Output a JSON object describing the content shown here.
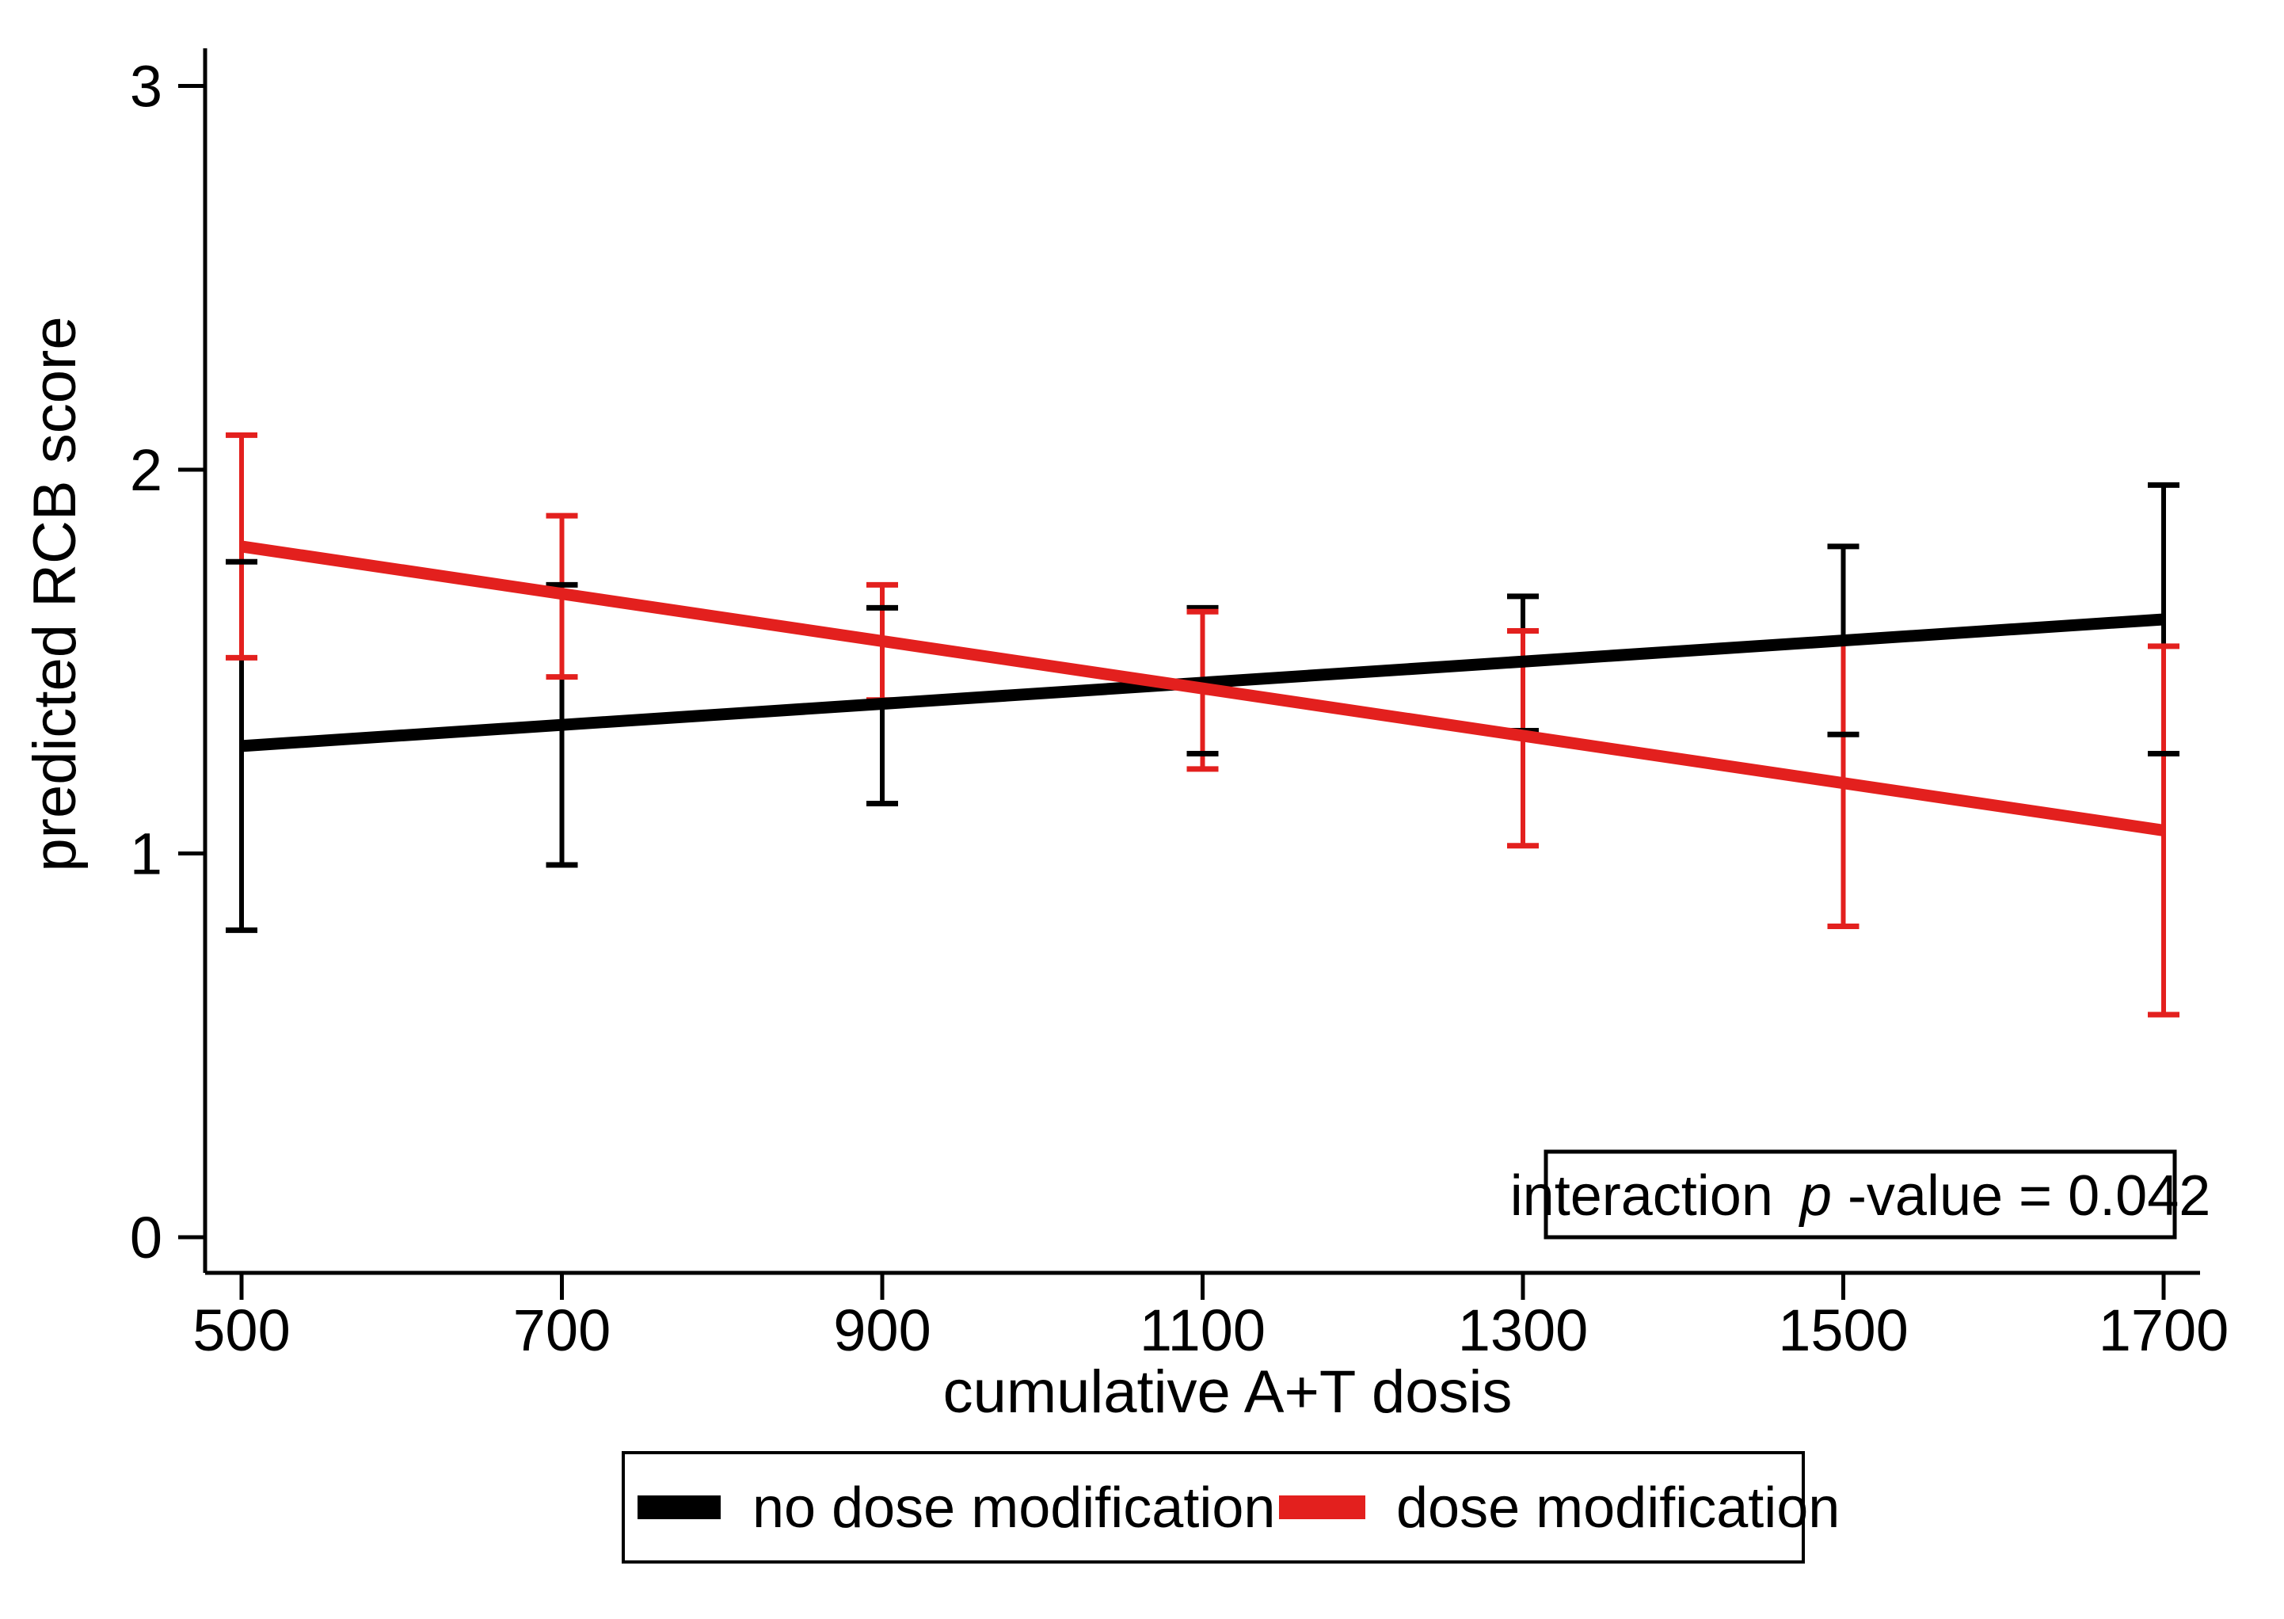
{
  "figure": {
    "background": "#ffffff",
    "black": "#000000",
    "red": "#e3201e"
  },
  "chart_data": {
    "type": "line",
    "title": "",
    "xlabel": "cumulative A+T dosis",
    "ylabel": "predicted RCB score",
    "x_ticks": [
      500,
      700,
      900,
      1100,
      1300,
      1500,
      1700
    ],
    "y_ticks": [
      0,
      1,
      2,
      3
    ],
    "xlim": [
      477,
      1723
    ],
    "ylim": [
      -0.09,
      3.1
    ],
    "grid": false,
    "legend_position": "bottom-center",
    "series": [
      {
        "name": "no dose modification",
        "color": "#000000",
        "line": {
          "x": [
            500,
            1700
          ],
          "y": [
            1.28,
            1.61
          ]
        },
        "error_bars": [
          {
            "x": 500,
            "center": 1.28,
            "lo": 0.8,
            "hi": 1.76
          },
          {
            "x": 700,
            "center": 1.33,
            "lo": 0.97,
            "hi": 1.7
          },
          {
            "x": 900,
            "center": 1.39,
            "lo": 1.13,
            "hi": 1.64
          },
          {
            "x": 1100,
            "center": 1.45,
            "lo": 1.26,
            "hi": 1.64
          },
          {
            "x": 1300,
            "center": 1.5,
            "lo": 1.32,
            "hi": 1.67
          },
          {
            "x": 1500,
            "center": 1.56,
            "lo": 1.31,
            "hi": 1.8
          },
          {
            "x": 1700,
            "center": 1.61,
            "lo": 1.26,
            "hi": 1.96
          }
        ]
      },
      {
        "name": "dose modification",
        "color": "#e3201e",
        "line": {
          "x": [
            500,
            1700
          ],
          "y": [
            1.8,
            1.06
          ]
        },
        "error_bars": [
          {
            "x": 500,
            "center": 1.8,
            "lo": 1.51,
            "hi": 2.09
          },
          {
            "x": 700,
            "center": 1.67,
            "lo": 1.46,
            "hi": 1.88
          },
          {
            "x": 900,
            "center": 1.55,
            "lo": 1.4,
            "hi": 1.7
          },
          {
            "x": 1100,
            "center": 1.43,
            "lo": 1.22,
            "hi": 1.63
          },
          {
            "x": 1300,
            "center": 1.3,
            "lo": 1.02,
            "hi": 1.58
          },
          {
            "x": 1500,
            "center": 1.19,
            "lo": 0.81,
            "hi": 1.55
          },
          {
            "x": 1700,
            "center": 1.06,
            "lo": 0.58,
            "hi": 1.54
          }
        ]
      }
    ]
  },
  "annotation": {
    "parts": [
      "interaction ",
      "p",
      "-value = 0.042"
    ],
    "p_value": "0.042"
  },
  "legend": {
    "items": [
      {
        "label": "no dose modification",
        "color": "#000000"
      },
      {
        "label": "dose modification",
        "color": "#e3201e"
      }
    ]
  }
}
